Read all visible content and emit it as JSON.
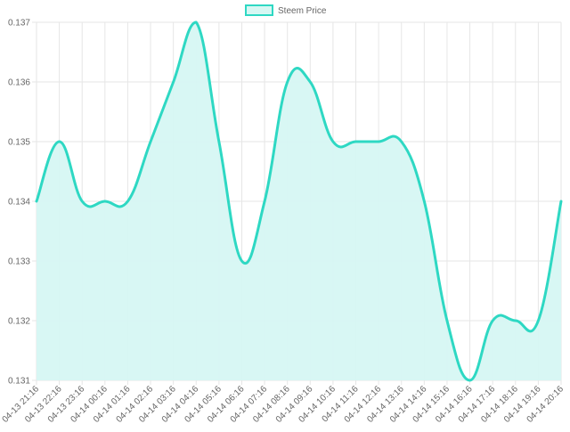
{
  "colors": {
    "line": "#2ed8c3",
    "fill": "#d6f7f3",
    "grid": "#e6e6e6",
    "text": "#666666"
  },
  "chart_data": {
    "type": "area",
    "title": "",
    "xlabel": "",
    "ylabel": "",
    "legend_position": "top",
    "grid": true,
    "categories": [
      "04-13 21:16",
      "04-13 22:16",
      "04-13 23:16",
      "04-14 00:16",
      "04-14 01:16",
      "04-14 02:16",
      "04-14 03:16",
      "04-14 04:16",
      "04-14 05:16",
      "04-14 06:16",
      "04-14 07:16",
      "04-14 08:16",
      "04-14 09:16",
      "04-14 10:16",
      "04-14 11:16",
      "04-14 12:16",
      "04-14 13:16",
      "04-14 14:16",
      "04-14 15:16",
      "04-14 16:16",
      "04-14 17:16",
      "04-14 18:16",
      "04-14 19:16",
      "04-14 20:16"
    ],
    "series": [
      {
        "name": "Steem Price",
        "values": [
          0.134,
          0.135,
          0.134,
          0.134,
          0.134,
          0.135,
          0.136,
          0.137,
          0.135,
          0.133,
          0.134,
          0.136,
          0.136,
          0.135,
          0.135,
          0.135,
          0.135,
          0.134,
          0.132,
          0.131,
          0.132,
          0.132,
          0.132,
          0.134
        ]
      }
    ],
    "ylim": [
      0.131,
      0.137
    ],
    "yticks": [
      "0.137",
      "0.136",
      "0.135",
      "0.134",
      "0.133",
      "0.132",
      "0.131"
    ]
  }
}
